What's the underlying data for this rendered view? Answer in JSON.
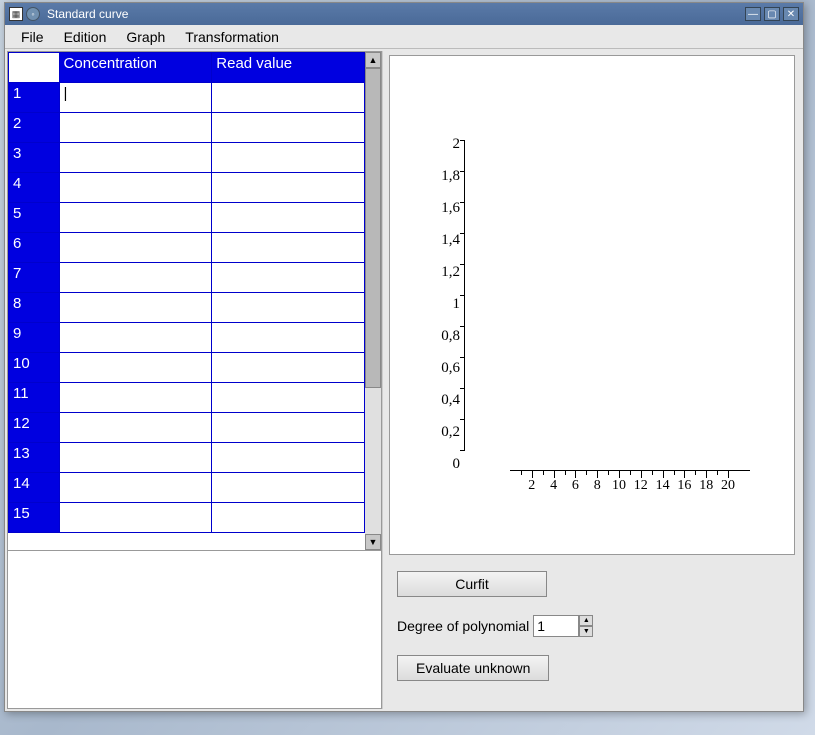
{
  "window": {
    "title": "Standard curve"
  },
  "menu": {
    "file": "File",
    "edition": "Edition",
    "graph": "Graph",
    "transformation": "Transformation"
  },
  "table": {
    "col_concentration": "Concentration",
    "col_readvalue": "Read value",
    "rows": [
      "1",
      "2",
      "3",
      "4",
      "5",
      "6",
      "7",
      "8",
      "9",
      "10",
      "11",
      "12",
      "13",
      "14",
      "15"
    ]
  },
  "chart": {
    "type": "scatter",
    "xlim": [
      0,
      20
    ],
    "ylim": [
      0,
      2
    ],
    "xtick_step": 2,
    "xtick_labels": [
      "2",
      "4",
      "6",
      "8",
      "10",
      "12",
      "14",
      "16",
      "18",
      "20"
    ],
    "ytick_step": 0.2,
    "ytick_labels": [
      "2",
      "1,8",
      "1,6",
      "1,4",
      "1,2",
      "1",
      "0,8",
      "0,6",
      "0,4",
      "0,2",
      "0"
    ],
    "background_color": "#ffffff",
    "axis_color": "#000000",
    "label_fontsize": 15,
    "font_family": "serif"
  },
  "controls": {
    "curfit_label": "Curfit",
    "degree_label": "Degree of polynomial",
    "degree_value": "1",
    "evaluate_label": "Evaluate unknown"
  }
}
